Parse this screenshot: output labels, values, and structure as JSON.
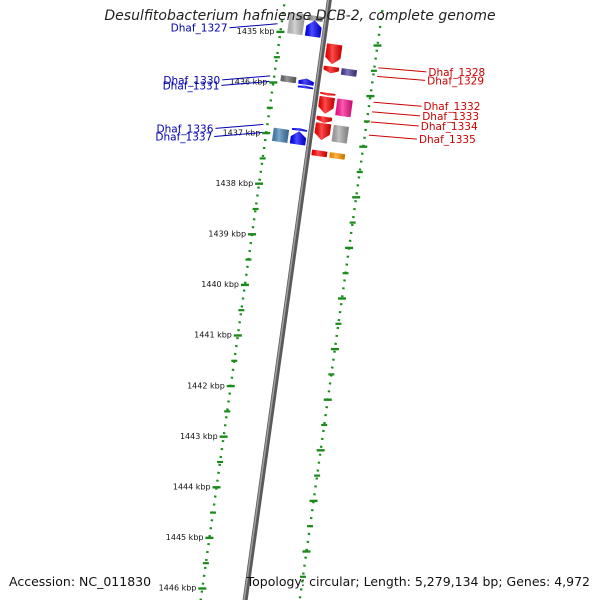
{
  "title": "Desulfitobacterium hafniense DCB-2, complete genome",
  "footer": {
    "accession": "Accession: NC_011830",
    "summary": "Topology: circular; Length: 5,279,134 bp; Genes: 4,972"
  },
  "colors": {
    "forward_strand": "#ff0000",
    "reverse_strand": "#0000ff",
    "forward_label": "#cc0000",
    "reverse_label": "#0000b0",
    "tick": "#1a8a1a",
    "backbone": "#777777"
  },
  "ticks": [
    "1435 kbp",
    "1436 kbp",
    "1437 kbp",
    "1438 kbp",
    "1439 kbp",
    "1440 kbp",
    "1441 kbp",
    "1442 kbp",
    "1443 kbp",
    "1444 kbp",
    "1445 kbp",
    "1446 kbp"
  ],
  "features": {
    "forward": [
      {
        "t1": 0.1,
        "t2": 0.48,
        "lane": 1,
        "color": "#ff0000",
        "arrow": true
      },
      {
        "t1": 0.54,
        "t2": 0.66,
        "lane": 1,
        "color": "#ff0000",
        "arrow": true
      },
      {
        "t1": 0.54,
        "t2": 0.66,
        "lane": 2,
        "color": "#4b3d96",
        "arrow": false
      },
      {
        "t1": 1.06,
        "t2": 1.1,
        "lane": 1,
        "color": "#ff0000",
        "arrow": true
      },
      {
        "t1": 1.14,
        "t2": 1.46,
        "lane": 1,
        "color": "#ff0000",
        "arrow": true
      },
      {
        "t1": 1.14,
        "t2": 1.46,
        "lane": 2,
        "color": "#ff1493",
        "arrow": false
      },
      {
        "t1": 1.53,
        "t2": 1.64,
        "lane": 1,
        "color": "#ff0000",
        "arrow": true
      },
      {
        "t1": 1.66,
        "t2": 1.98,
        "lane": 1,
        "color": "#ff0000",
        "arrow": true
      },
      {
        "t1": 1.66,
        "t2": 1.98,
        "lane": 2,
        "color": "#a8a8a8",
        "arrow": false
      },
      {
        "t1": 2.2,
        "t2": 2.3,
        "lane": 1,
        "color": "#ff0000",
        "arrow": false
      },
      {
        "t1": 2.2,
        "t2": 2.3,
        "lane": 2,
        "color": "#ff9900",
        "arrow": false
      }
    ],
    "reverse": [
      {
        "t1": -0.4,
        "t2": -0.31,
        "lane": 1,
        "color": "#888888",
        "arrow": false
      },
      {
        "t1": -0.31,
        "t2": 0.0,
        "lane": 1,
        "color": "#0000ff",
        "arrow": true
      },
      {
        "t1": -0.4,
        "t2": 0.0,
        "lane": 2,
        "color": "#c0c0c0",
        "arrow": false
      },
      {
        "t1": 0.84,
        "t2": 0.95,
        "lane": 1,
        "color": "#0000ff",
        "arrow": true
      },
      {
        "t1": 0.84,
        "t2": 0.95,
        "lane": 2,
        "color": "#6b6b6b",
        "arrow": false
      },
      {
        "t1": 0.98,
        "t2": 1.02,
        "lane": 1,
        "color": "#0000ff",
        "arrow": true
      },
      {
        "t1": 1.82,
        "t2": 1.86,
        "lane": 1,
        "color": "#0000ff",
        "arrow": true
      },
      {
        "t1": 1.88,
        "t2": 2.13,
        "lane": 1,
        "color": "#0000ff",
        "arrow": true
      },
      {
        "t1": 1.88,
        "t2": 2.13,
        "lane": 2,
        "color": "#4682b4",
        "arrow": false
      }
    ]
  },
  "gene_labels": [
    {
      "text": "Dhaf_1327",
      "strand": "reverse",
      "t": -0.15
    },
    {
      "text": "Dhaf_1328",
      "strand": "forward",
      "t": 0.43
    },
    {
      "text": "Dhaf_1329",
      "strand": "forward",
      "t": 0.6
    },
    {
      "text": "Dhaf_1330",
      "strand": "reverse",
      "t": 0.88
    },
    {
      "text": "Dhaf_1331",
      "strand": "reverse",
      "t": 0.99
    },
    {
      "text": "Dhaf_1332",
      "strand": "forward",
      "t": 1.11
    },
    {
      "text": "Dhaf_1333",
      "strand": "forward",
      "t": 1.3
    },
    {
      "text": "Dhaf_1334",
      "strand": "forward",
      "t": 1.5
    },
    {
      "text": "Dhaf_1335",
      "strand": "forward",
      "t": 1.76
    },
    {
      "text": "Dhaf_1336",
      "strand": "reverse",
      "t": 1.84
    },
    {
      "text": "Dhaf_1337",
      "strand": "reverse",
      "t": 2.0
    }
  ]
}
